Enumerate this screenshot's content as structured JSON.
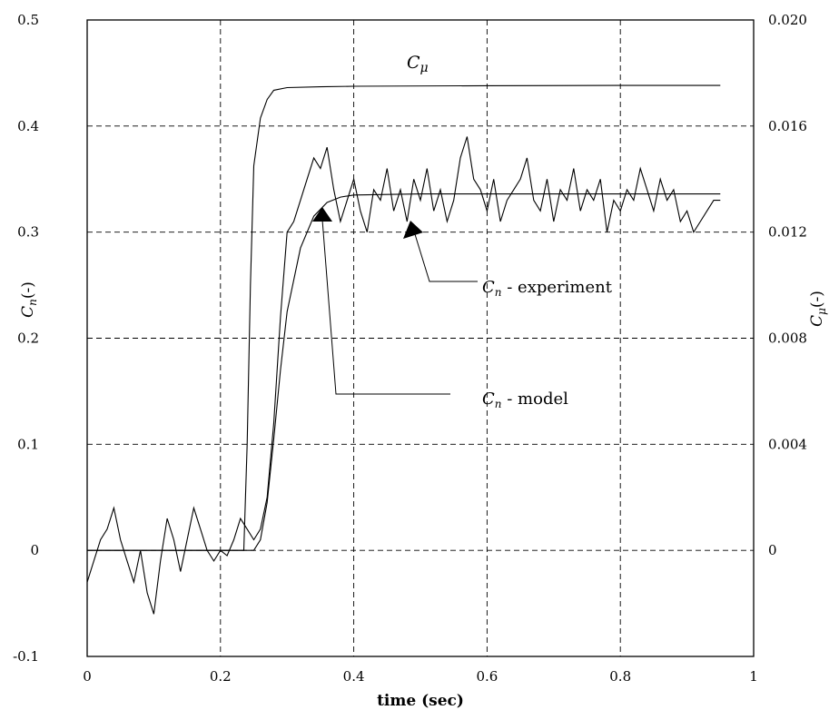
{
  "chart_data": {
    "type": "line",
    "xlabel": "time (sec)",
    "ylabel_left": {
      "main": "C",
      "sub": "n",
      "suffix": "(-)"
    },
    "ylabel_right": {
      "main": "C",
      "mu": "μ",
      "suffix": "(-)"
    },
    "xlim": [
      0,
      1
    ],
    "ylim_left": [
      -0.1,
      0.5
    ],
    "ylim_right": [
      -0.004,
      0.02
    ],
    "x_ticks": [
      "0",
      "0.2",
      "0.4",
      "0.6",
      "0.8",
      "1"
    ],
    "y_ticks_left": [
      "-0.1",
      "0",
      "0.1",
      "0.2",
      "0.3",
      "0.4",
      "0.5"
    ],
    "y_ticks_right": [
      "0",
      "0.004",
      "0.008",
      "0.012",
      "0.016",
      "0.020"
    ],
    "grid": true,
    "annotations": {
      "cmu": {
        "main": "C",
        "mu": "μ"
      },
      "experiment": {
        "main": "C",
        "sub": "n",
        "suffix": " - experiment"
      },
      "model": {
        "main": "C",
        "sub": "n",
        "suffix": " - model"
      }
    },
    "series": [
      {
        "label": "C_mu",
        "axis": "right",
        "x": [
          0.0,
          0.235,
          0.24,
          0.245,
          0.25,
          0.26,
          0.27,
          0.28,
          0.3,
          0.35,
          0.4,
          0.6,
          0.8,
          0.95
        ],
        "y": [
          0.0,
          0.0,
          0.004,
          0.01,
          0.0145,
          0.0163,
          0.017,
          0.01735,
          0.01745,
          0.01748,
          0.0175,
          0.01752,
          0.01753,
          0.01753
        ]
      },
      {
        "label": "C_n - model",
        "axis": "left",
        "x": [
          0.0,
          0.24,
          0.25,
          0.26,
          0.27,
          0.28,
          0.29,
          0.3,
          0.32,
          0.34,
          0.36,
          0.38,
          0.4,
          0.5,
          0.6,
          0.8,
          0.95
        ],
        "y": [
          0.0,
          0.0,
          0.0,
          0.01,
          0.045,
          0.105,
          0.17,
          0.225,
          0.285,
          0.315,
          0.328,
          0.333,
          0.335,
          0.336,
          0.336,
          0.336,
          0.336
        ]
      },
      {
        "label": "C_n - experiment",
        "axis": "left",
        "x": [
          0.0,
          0.01,
          0.02,
          0.03,
          0.04,
          0.05,
          0.06,
          0.07,
          0.08,
          0.09,
          0.1,
          0.11,
          0.12,
          0.13,
          0.14,
          0.15,
          0.16,
          0.17,
          0.18,
          0.19,
          0.2,
          0.21,
          0.22,
          0.23,
          0.24,
          0.25,
          0.26,
          0.27,
          0.28,
          0.29,
          0.3,
          0.31,
          0.32,
          0.33,
          0.34,
          0.35,
          0.36,
          0.37,
          0.38,
          0.39,
          0.4,
          0.41,
          0.42,
          0.43,
          0.44,
          0.45,
          0.46,
          0.47,
          0.48,
          0.49,
          0.5,
          0.51,
          0.52,
          0.53,
          0.54,
          0.55,
          0.56,
          0.57,
          0.58,
          0.59,
          0.6,
          0.61,
          0.62,
          0.63,
          0.64,
          0.65,
          0.66,
          0.67,
          0.68,
          0.69,
          0.7,
          0.71,
          0.72,
          0.73,
          0.74,
          0.75,
          0.76,
          0.77,
          0.78,
          0.79,
          0.8,
          0.81,
          0.82,
          0.83,
          0.84,
          0.85,
          0.86,
          0.87,
          0.88,
          0.89,
          0.9,
          0.91,
          0.92,
          0.93,
          0.94,
          0.95
        ],
        "y": [
          -0.03,
          -0.01,
          0.01,
          0.02,
          0.04,
          0.01,
          -0.01,
          -0.03,
          0.0,
          -0.04,
          -0.06,
          -0.01,
          0.03,
          0.01,
          -0.02,
          0.01,
          0.04,
          0.02,
          0.0,
          -0.01,
          0.0,
          -0.005,
          0.01,
          0.03,
          0.02,
          0.01,
          0.02,
          0.05,
          0.12,
          0.22,
          0.3,
          0.31,
          0.33,
          0.35,
          0.37,
          0.36,
          0.38,
          0.34,
          0.31,
          0.33,
          0.35,
          0.32,
          0.3,
          0.34,
          0.33,
          0.36,
          0.32,
          0.34,
          0.31,
          0.35,
          0.33,
          0.36,
          0.32,
          0.34,
          0.31,
          0.33,
          0.37,
          0.39,
          0.35,
          0.34,
          0.32,
          0.35,
          0.31,
          0.33,
          0.34,
          0.35,
          0.37,
          0.33,
          0.32,
          0.35,
          0.31,
          0.34,
          0.33,
          0.36,
          0.32,
          0.34,
          0.33,
          0.35,
          0.3,
          0.33,
          0.32,
          0.34,
          0.33,
          0.36,
          0.34,
          0.32,
          0.35,
          0.33,
          0.34,
          0.31,
          0.32,
          0.3,
          0.31,
          0.32,
          0.33,
          0.33
        ]
      }
    ]
  }
}
